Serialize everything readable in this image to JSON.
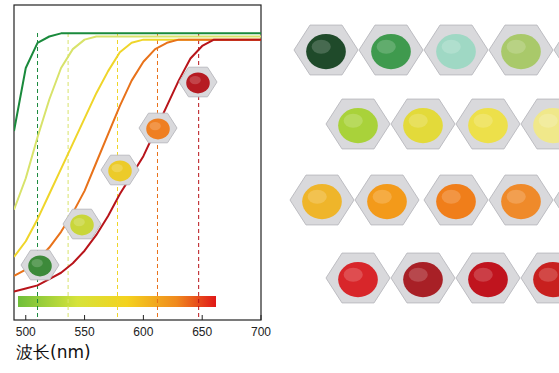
{
  "chart_data": {
    "type": "line",
    "x_label": "波长(nm)",
    "x": [
      490,
      500,
      510,
      520,
      530,
      540,
      550,
      560,
      570,
      580,
      590,
      600,
      610,
      620,
      630,
      640,
      650,
      660,
      670,
      680,
      690,
      700
    ],
    "series": [
      {
        "color": "#1a8a3c",
        "values": [
          60,
          80,
          88,
          90,
          91,
          91,
          91,
          91,
          91,
          91,
          91,
          91,
          91,
          91,
          91,
          91,
          91,
          91,
          91,
          91,
          91,
          91
        ]
      },
      {
        "color": "#d8e36a",
        "values": [
          35,
          45,
          58,
          70,
          80,
          86,
          89,
          90,
          90,
          90,
          90,
          90,
          90,
          90,
          90,
          90,
          90,
          90,
          90,
          90,
          90,
          90
        ]
      },
      {
        "color": "#efd52a",
        "values": [
          20,
          25,
          32,
          40,
          48,
          56,
          64,
          72,
          79,
          85,
          88,
          89,
          89,
          89,
          89,
          89,
          89,
          89,
          89,
          89,
          89,
          89
        ]
      },
      {
        "color": "#e8721a",
        "values": [
          14,
          16,
          19,
          23,
          28,
          34,
          41,
          50,
          59,
          68,
          76,
          82,
          86,
          88,
          89,
          89,
          89,
          89,
          89,
          89,
          89,
          89
        ]
      },
      {
        "color": "#b8141a",
        "values": [
          9,
          10,
          11,
          13,
          15,
          18,
          22,
          27,
          33,
          40,
          46,
          52,
          60,
          68,
          76,
          83,
          87,
          89,
          89,
          89,
          89,
          89
        ]
      }
    ],
    "vlines": [
      510,
      536,
      578,
      612,
      647
    ],
    "xlim": [
      490,
      700
    ],
    "xticks": [
      500,
      550,
      600,
      650,
      700
    ],
    "ylim": [
      0,
      100
    ],
    "tick_labels": "x",
    "grid": false,
    "line_style": "solid"
  }
}
